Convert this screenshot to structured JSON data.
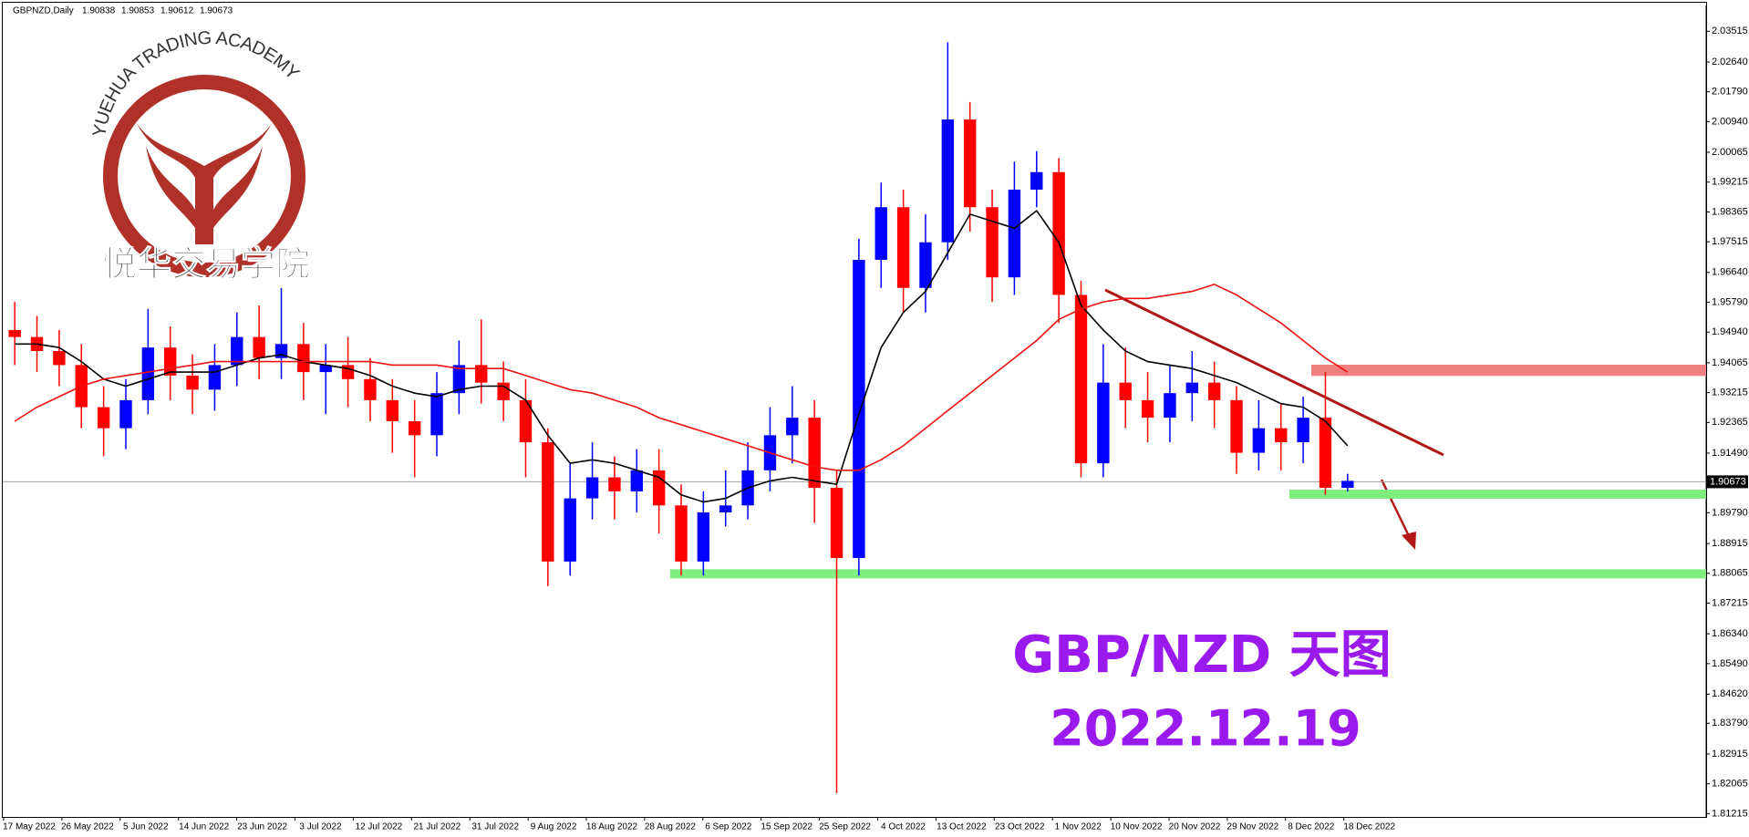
{
  "chart_data": {
    "type": "candlestick",
    "title": "GBPNZD,Daily",
    "last_bar": [
      1.90838,
      1.90853,
      1.90612,
      1.90673
    ],
    "categories": [
      "17 May 2022",
      "26 May 2022",
      "5 Jun 2022",
      "14 Jun 2022",
      "23 Jun 2022",
      "3 Jul 2022",
      "12 Jul 2022",
      "21 Jul 2022",
      "31 Jul 2022",
      "9 Aug 2022",
      "18 Aug 2022",
      "28 Aug 2022",
      "6 Sep 2022",
      "15 Sep 2022",
      "25 Sep 2022",
      "4 Oct 2022",
      "13 Oct 2022",
      "23 Oct 2022",
      "1 Nov 2022",
      "10 Nov 2022",
      "20 Nov 2022",
      "29 Nov 2022",
      "8 Dec 2022",
      "18 Dec 2022"
    ],
    "open": [
      1.95,
      1.948,
      1.944,
      1.94,
      1.928,
      1.922,
      1.93,
      1.945,
      1.937,
      1.933,
      1.94,
      1.948,
      1.942,
      1.946,
      1.938,
      1.94,
      1.936,
      1.93,
      1.924,
      1.92,
      1.932,
      1.94,
      1.935,
      1.93,
      1.918,
      1.884,
      1.902,
      1.908,
      1.904,
      1.91,
      1.9,
      1.884,
      1.898,
      1.9,
      1.91,
      1.92,
      1.925,
      1.905,
      1.885,
      1.97,
      1.985,
      1.962,
      1.975,
      2.01,
      1.985,
      1.965,
      1.99,
      1.995,
      1.96,
      1.912,
      1.935,
      1.93,
      1.925,
      1.932,
      1.935,
      1.93,
      1.915,
      1.922,
      1.918,
      1.925,
      1.905
    ],
    "high": [
      1.958,
      1.954,
      1.95,
      1.946,
      1.934,
      1.936,
      1.956,
      1.951,
      1.943,
      1.946,
      1.955,
      1.957,
      1.962,
      1.952,
      1.946,
      1.948,
      1.942,
      1.936,
      1.93,
      1.938,
      1.947,
      1.953,
      1.941,
      1.936,
      1.922,
      1.912,
      1.918,
      1.914,
      1.916,
      1.916,
      1.906,
      1.904,
      1.91,
      1.918,
      1.928,
      1.934,
      1.93,
      1.91,
      1.976,
      1.992,
      1.99,
      1.983,
      2.032,
      2.015,
      1.99,
      1.998,
      2.001,
      1.999,
      1.964,
      1.946,
      1.945,
      1.938,
      1.94,
      1.944,
      1.941,
      1.934,
      1.93,
      1.929,
      1.931,
      1.938,
      1.909
    ],
    "low": [
      1.94,
      1.938,
      1.934,
      1.922,
      1.914,
      1.916,
      1.926,
      1.93,
      1.926,
      1.927,
      1.934,
      1.936,
      1.936,
      1.93,
      1.926,
      1.928,
      1.924,
      1.915,
      1.908,
      1.914,
      1.926,
      1.929,
      1.924,
      1.908,
      1.877,
      1.88,
      1.896,
      1.896,
      1.898,
      1.892,
      1.88,
      1.88,
      1.894,
      1.896,
      1.904,
      1.912,
      1.895,
      1.818,
      1.88,
      1.962,
      1.955,
      1.955,
      1.97,
      1.978,
      1.958,
      1.96,
      1.985,
      1.952,
      1.908,
      1.908,
      1.922,
      1.918,
      1.918,
      1.924,
      1.922,
      1.909,
      1.91,
      1.91,
      1.912,
      1.903,
      1.904
    ],
    "close": [
      1.948,
      1.944,
      1.94,
      1.928,
      1.922,
      1.93,
      1.945,
      1.937,
      1.933,
      1.94,
      1.948,
      1.942,
      1.946,
      1.938,
      1.94,
      1.936,
      1.93,
      1.924,
      1.92,
      1.932,
      1.94,
      1.935,
      1.93,
      1.918,
      1.884,
      1.902,
      1.908,
      1.904,
      1.91,
      1.9,
      1.884,
      1.898,
      1.9,
      1.91,
      1.92,
      1.925,
      1.905,
      1.885,
      1.97,
      1.985,
      1.962,
      1.975,
      2.01,
      1.985,
      1.965,
      1.99,
      1.995,
      1.96,
      1.912,
      1.935,
      1.93,
      1.925,
      1.932,
      1.935,
      1.93,
      1.915,
      1.922,
      1.918,
      1.925,
      1.905,
      1.907
    ],
    "up_color": "#0000ff",
    "down_color": "#ff0000",
    "moving_averages": [
      {
        "color": "#000000",
        "values": [
          1.946,
          1.946,
          1.945,
          1.941,
          1.936,
          1.934,
          1.936,
          1.938,
          1.938,
          1.938,
          1.94,
          1.942,
          1.943,
          1.941,
          1.94,
          1.939,
          1.937,
          1.934,
          1.932,
          1.931,
          1.933,
          1.934,
          1.934,
          1.93,
          1.92,
          1.912,
          1.913,
          1.912,
          1.91,
          1.908,
          1.903,
          1.901,
          1.902,
          1.905,
          1.907,
          1.908,
          1.907,
          1.906,
          1.926,
          1.945,
          1.955,
          1.961,
          1.972,
          1.983,
          1.981,
          1.979,
          1.984,
          1.975,
          1.957,
          1.95,
          1.944,
          1.941,
          1.94,
          1.939,
          1.937,
          1.935,
          1.932,
          1.929,
          1.928,
          1.924,
          1.917
        ]
      },
      {
        "color": "#ee1111",
        "values": [
          1.924,
          1.928,
          1.931,
          1.934,
          1.936,
          1.937,
          1.938,
          1.939,
          1.94,
          1.941,
          1.941,
          1.941,
          1.941,
          1.941,
          1.941,
          1.941,
          1.941,
          1.94,
          1.94,
          1.94,
          1.939,
          1.939,
          1.939,
          1.937,
          1.935,
          1.933,
          1.932,
          1.93,
          1.928,
          1.925,
          1.923,
          1.921,
          1.919,
          1.917,
          1.915,
          1.913,
          1.911,
          1.91,
          1.91,
          1.913,
          1.917,
          1.922,
          1.927,
          1.932,
          1.937,
          1.942,
          1.947,
          1.953,
          1.956,
          1.958,
          1.959,
          1.959,
          1.96,
          1.961,
          1.963,
          1.96,
          1.956,
          1.952,
          1.947,
          1.942,
          1.938
        ]
      }
    ],
    "levels": [
      {
        "value": 1.8805,
        "color": "#7fee7f"
      },
      {
        "value": 1.9032,
        "color": "#7fee7f"
      }
    ],
    "zone": {
      "range": [
        1.9369,
        1.9401
      ],
      "color": "#f28080"
    },
    "current_price": 1.90673,
    "ylim": [
      1.8112,
      2.0425
    ],
    "yticks": [
      2.03515,
      {
        "value": 2.0264,
        "label": "2.02640"
      },
      {
        "value": 2.0179,
        "label": "2.01790"
      },
      {
        "value": 2.0094,
        "label": "2.00940"
      },
      2.00065,
      1.99215,
      1.98365,
      1.97515,
      {
        "value": 1.9664,
        "label": "1.96640"
      },
      {
        "value": 1.9579,
        "label": "1.95790"
      },
      {
        "value": 1.9494,
        "label": "1.94940"
      },
      1.94065,
      1.93215,
      1.92365,
      {
        "value": 1.9149,
        "label": "1.91490"
      },
      {
        "value": 1.8979,
        "label": "1.89790"
      },
      1.88915,
      1.88065,
      1.87215,
      {
        "value": 1.8634,
        "label": "1.86340"
      },
      {
        "value": 1.8549,
        "label": "1.85490"
      },
      {
        "value": 1.8462,
        "label": "1.84620"
      },
      {
        "value": 1.8379,
        "label": "1.83790"
      },
      1.82915,
      1.82065,
      1.81215
    ],
    "annotations": [
      "GBP/NZD 天图",
      "2022.12.19"
    ],
    "watermark": {
      "brand": "YUEHUA TRADING ACADEMY",
      "name": "悦华交易学院"
    }
  }
}
